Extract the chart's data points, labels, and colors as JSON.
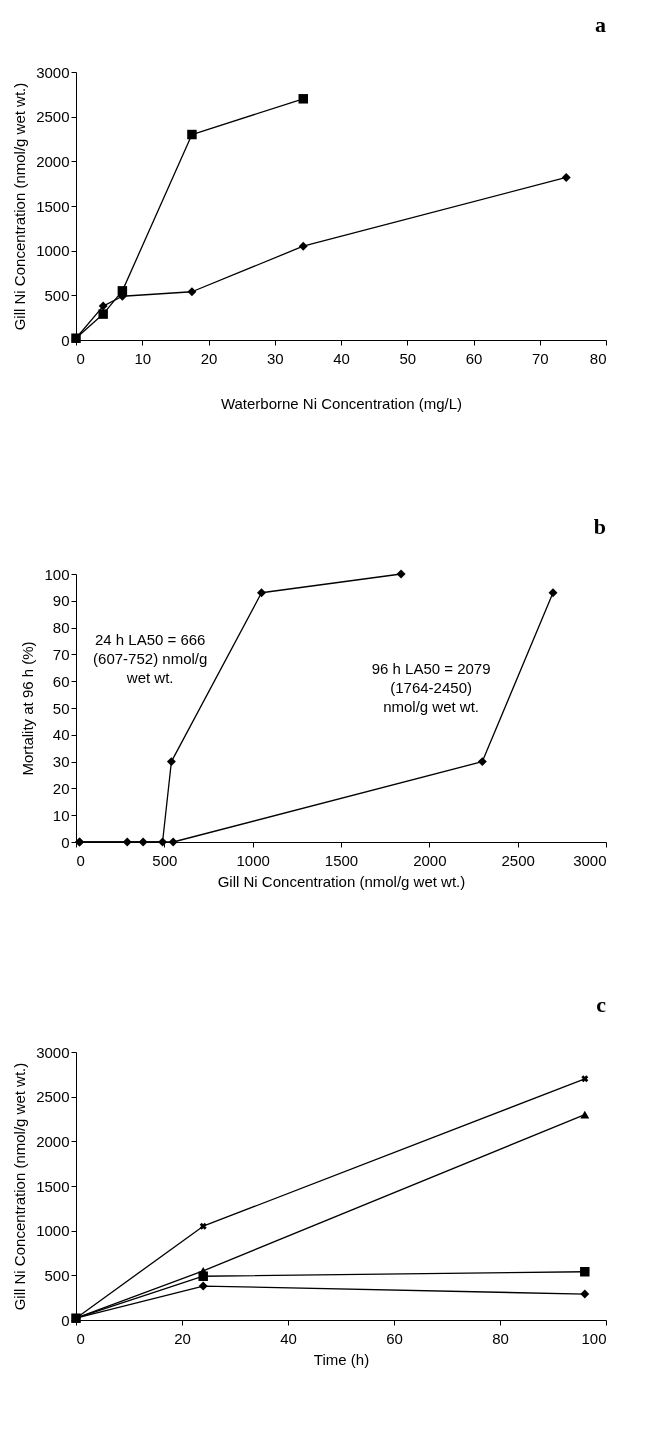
{
  "chart_data": [
    {
      "type": "line",
      "title": "a",
      "xlabel": "Waterborne Ni Concentration (mg/L)",
      "ylabel": "Gill Ni Concentration (nmol/g wet wt.)",
      "xlim": [
        0,
        80
      ],
      "xticks": [
        0,
        10,
        20,
        30,
        40,
        50,
        60,
        70,
        80
      ],
      "ylim": [
        0,
        3000
      ],
      "yticks": [
        0,
        500,
        1000,
        1500,
        2000,
        2500,
        3000
      ],
      "grid": false,
      "series": [
        {
          "color": "#000000",
          "marker": "square",
          "x": [
            0,
            4.1,
            7,
            17.5,
            34.3
          ],
          "values": [
            20,
            290,
            550,
            2300,
            2700
          ]
        },
        {
          "color": "#000000",
          "marker": "diamond",
          "x": [
            0,
            4.1,
            7,
            17.5,
            34.3,
            74
          ],
          "values": [
            20,
            380,
            490,
            540,
            1050,
            1820
          ]
        }
      ]
    },
    {
      "type": "line",
      "title": "b",
      "xlabel": "Gill Ni Concentration (nmol/g wet wt.)",
      "ylabel": "Mortality at 96 h (%)",
      "xlim": [
        0,
        3000
      ],
      "xticks": [
        0,
        500,
        1000,
        1500,
        2000,
        2500,
        3000
      ],
      "ylim": [
        0,
        100
      ],
      "yticks": [
        0,
        10,
        20,
        30,
        40,
        50,
        60,
        70,
        80,
        90,
        100
      ],
      "grid": false,
      "annotations": [
        "24 h LA50 = 666 (607-752) nmol/g wet wt.",
        "96 h LA50 = 2079 (1764-2450) nmol/g wet wt."
      ],
      "series": [
        {
          "color": "#000000",
          "marker": "diamond",
          "x": [
            20,
            380,
            490,
            540,
            1050,
            1840
          ],
          "values": [
            0,
            0,
            0,
            30,
            93,
            100
          ]
        },
        {
          "color": "#000000",
          "marker": "diamond",
          "x": [
            20,
            290,
            550,
            2300,
            2700
          ],
          "values": [
            0,
            0,
            0,
            30,
            93
          ]
        }
      ]
    },
    {
      "type": "line",
      "title": "c",
      "xlabel": "Time (h)",
      "ylabel": "Gill Ni Concentration (nmol/g wet wt.)",
      "xlim": [
        0,
        100
      ],
      "xticks": [
        0,
        20,
        40,
        60,
        80,
        100
      ],
      "ylim": [
        0,
        3000
      ],
      "yticks": [
        0,
        500,
        1000,
        1500,
        2000,
        2500,
        3000
      ],
      "grid": false,
      "series": [
        {
          "color": "#000000",
          "marker": "diamond",
          "x": [
            0,
            24,
            96
          ],
          "values": [
            20,
            380,
            290
          ]
        },
        {
          "color": "#000000",
          "marker": "square",
          "x": [
            0,
            24,
            96
          ],
          "values": [
            20,
            490,
            540
          ]
        },
        {
          "color": "#000000",
          "marker": "triangle",
          "x": [
            0,
            24,
            96
          ],
          "values": [
            20,
            550,
            2300
          ]
        },
        {
          "color": "#000000",
          "marker": "cross",
          "x": [
            0,
            24,
            96
          ],
          "values": [
            20,
            1050,
            2700
          ]
        }
      ]
    }
  ]
}
